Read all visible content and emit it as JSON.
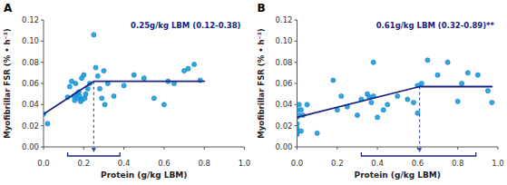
{
  "chart_data": [
    {
      "type": "scatter",
      "title": "A",
      "annotations": [
        "0.25g/kg LBM (0.12-0.38)"
      ],
      "xlabel": "Protein (g/kg LBM)",
      "ylabel": "Myofibrillar FSR (% • h⁻¹)",
      "breakpoint": 0.25,
      "ci_low": 0.12,
      "ci_high": 0.38,
      "series": [
        {
          "type": "scatter",
          "color": "#29ABE2",
          "x": [
            0.0,
            0.02,
            0.12,
            0.13,
            0.14,
            0.15,
            0.155,
            0.16,
            0.165,
            0.17,
            0.175,
            0.18,
            0.185,
            0.19,
            0.195,
            0.2,
            0.205,
            0.21,
            0.22,
            0.23,
            0.25,
            0.26,
            0.27,
            0.28,
            0.29,
            0.3,
            0.305,
            0.32,
            0.35,
            0.4,
            0.45,
            0.5,
            0.55,
            0.6,
            0.62,
            0.65,
            0.7,
            0.72,
            0.75,
            0.78
          ],
          "values": [
            0.031,
            0.022,
            0.047,
            0.057,
            0.062,
            0.048,
            0.044,
            0.06,
            0.05,
            0.046,
            0.052,
            0.048,
            0.043,
            0.065,
            0.045,
            0.068,
            0.046,
            0.05,
            0.055,
            0.06,
            0.106,
            0.075,
            0.067,
            0.055,
            0.046,
            0.072,
            0.04,
            0.06,
            0.048,
            0.058,
            0.068,
            0.065,
            0.046,
            0.04,
            0.062,
            0.06,
            0.072,
            0.074,
            0.078,
            0.063
          ]
        },
        {
          "type": "line",
          "color": "#1a237e",
          "x": [
            0.0,
            0.25,
            0.8
          ],
          "values": [
            0.031,
            0.062,
            0.062
          ]
        }
      ],
      "xlim": [
        0.0,
        1.0
      ],
      "ylim": [
        0.0,
        0.12
      ],
      "xticks": [
        {
          "value": 0.0,
          "label": "0.0"
        },
        0.2,
        0.4,
        0.6,
        0.8,
        {
          "value": 1.0,
          "label": "1.0"
        }
      ],
      "yticks": [
        {
          "value": 0.0,
          "label": "0.00"
        },
        0.02,
        0.04,
        0.06,
        0.08,
        {
          "value": 0.1,
          "label": "0.10"
        },
        0.12
      ],
      "grid": false
    },
    {
      "type": "scatter",
      "title": "B",
      "annotations": [
        "0.61g/kg LBM (0.32-0.89)**"
      ],
      "xlabel": "Protein (g/kg LBM)",
      "ylabel": "Myofibrillar FSR (% • h⁻¹)",
      "breakpoint": 0.61,
      "ci_low": 0.32,
      "ci_high": 0.89,
      "series": [
        {
          "type": "scatter",
          "color": "#29ABE2",
          "x": [
            0.0,
            0.0,
            0.0,
            0.0,
            0.0,
            0.0,
            0.01,
            0.01,
            0.02,
            0.02,
            0.03,
            0.05,
            0.1,
            0.18,
            0.2,
            0.22,
            0.25,
            0.3,
            0.32,
            0.35,
            0.36,
            0.37,
            0.38,
            0.38,
            0.4,
            0.43,
            0.45,
            0.5,
            0.55,
            0.58,
            0.6,
            0.6,
            0.62,
            0.65,
            0.7,
            0.75,
            0.8,
            0.82,
            0.85,
            0.9,
            0.95,
            0.97
          ],
          "values": [
            0.012,
            0.015,
            0.018,
            0.022,
            0.028,
            0.035,
            0.03,
            0.04,
            0.015,
            0.035,
            0.03,
            0.04,
            0.013,
            0.063,
            0.035,
            0.048,
            0.038,
            0.03,
            0.045,
            0.05,
            0.047,
            0.042,
            0.048,
            0.08,
            0.028,
            0.035,
            0.04,
            0.048,
            0.045,
            0.042,
            0.058,
            0.032,
            0.06,
            0.082,
            0.068,
            0.08,
            0.043,
            0.06,
            0.07,
            0.068,
            0.053,
            0.042
          ]
        },
        {
          "type": "line",
          "color": "#1a237e",
          "x": [
            0.0,
            0.61,
            0.97
          ],
          "values": [
            0.028,
            0.057,
            0.057
          ]
        }
      ],
      "xlim": [
        0.0,
        1.0
      ],
      "ylim": [
        0.0,
        0.12
      ],
      "xticks": [
        {
          "value": 0.0,
          "label": "0.0"
        },
        0.2,
        0.4,
        0.6,
        0.8,
        {
          "value": 1.0,
          "label": "1.0"
        }
      ],
      "yticks": [
        {
          "value": 0.0,
          "label": "0.00"
        },
        0.02,
        0.04,
        0.06,
        0.08,
        {
          "value": 0.1,
          "label": "0.10"
        },
        0.12
      ],
      "grid": false
    }
  ]
}
